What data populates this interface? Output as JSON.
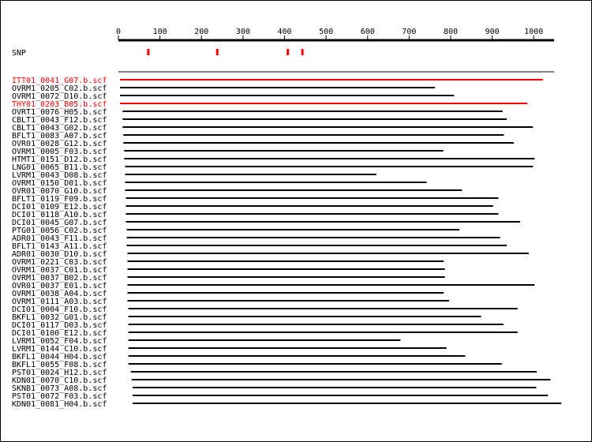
{
  "chart_data": {
    "type": "bar",
    "title": "",
    "xlabel": "",
    "ylabel": "",
    "axis": {
      "min": 0,
      "max": 1050,
      "ticks": [
        0,
        100,
        200,
        300,
        400,
        500,
        600,
        700,
        800,
        900,
        1000
      ]
    },
    "snp": {
      "label": "SNP",
      "positions": [
        72,
        238,
        408,
        443
      ],
      "color": "#ff0000"
    },
    "colors": {
      "normal": "#000000",
      "highlight": "#ff0000"
    },
    "reads": [
      {
        "name": "ITT01_0041_G07.b.scf",
        "start": 4,
        "end": 1022,
        "highlight": true
      },
      {
        "name": "OVRM1_0205_C02.b.scf",
        "start": 4,
        "end": 762,
        "highlight": false
      },
      {
        "name": "OVRM1_0072_D10.b.scf",
        "start": 4,
        "end": 808,
        "highlight": false
      },
      {
        "name": "THY01_0203_B05.b.scf",
        "start": 4,
        "end": 985,
        "highlight": true
      },
      {
        "name": "OVRT1_0076_H05.b.scf",
        "start": 10,
        "end": 925,
        "highlight": false
      },
      {
        "name": "CBLT1_0043_F12.b.scf",
        "start": 10,
        "end": 935,
        "highlight": false
      },
      {
        "name": "CBLT1_0043_G02.b.scf",
        "start": 10,
        "end": 998,
        "highlight": false
      },
      {
        "name": "BFLT1_0083_A07.b.scf",
        "start": 12,
        "end": 928,
        "highlight": false
      },
      {
        "name": "OVR01_0028_G12.b.scf",
        "start": 12,
        "end": 952,
        "highlight": false
      },
      {
        "name": "OVRM1_0005_F03.b.scf",
        "start": 14,
        "end": 782,
        "highlight": false
      },
      {
        "name": "HTMT1_0151_D12.b.scf",
        "start": 14,
        "end": 1002,
        "highlight": false
      },
      {
        "name": "LNG01_0065_B11.b.scf",
        "start": 16,
        "end": 998,
        "highlight": false
      },
      {
        "name": "LVRM1_0043_D08.b.scf",
        "start": 16,
        "end": 621,
        "highlight": false
      },
      {
        "name": "OVRM1_0150_D01.b.scf",
        "start": 16,
        "end": 742,
        "highlight": false
      },
      {
        "name": "OVR01_0070_G10.b.scf",
        "start": 16,
        "end": 827,
        "highlight": false
      },
      {
        "name": "BFLT1_0119_F09.b.scf",
        "start": 18,
        "end": 915,
        "highlight": false
      },
      {
        "name": "DCI01_0109_E12.b.scf",
        "start": 18,
        "end": 902,
        "highlight": false
      },
      {
        "name": "DCI01_0118_A10.b.scf",
        "start": 18,
        "end": 915,
        "highlight": false
      },
      {
        "name": "DCI01_0045_G07.b.scf",
        "start": 18,
        "end": 967,
        "highlight": false
      },
      {
        "name": "PTG01_0056_C02.b.scf",
        "start": 20,
        "end": 821,
        "highlight": false
      },
      {
        "name": "ADR01_0043_F11.b.scf",
        "start": 20,
        "end": 919,
        "highlight": false
      },
      {
        "name": "BFLT1_0143_A11.b.scf",
        "start": 20,
        "end": 935,
        "highlight": false
      },
      {
        "name": "ADR01_0030_D10.b.scf",
        "start": 22,
        "end": 988,
        "highlight": false
      },
      {
        "name": "OVRM1_0221_C03.b.scf",
        "start": 22,
        "end": 783,
        "highlight": false
      },
      {
        "name": "OVRM1_0037_C01.b.scf",
        "start": 22,
        "end": 786,
        "highlight": false
      },
      {
        "name": "OVRM1_0037_B02.b.scf",
        "start": 22,
        "end": 786,
        "highlight": false
      },
      {
        "name": "OVR01_0037_E01.b.scf",
        "start": 22,
        "end": 1002,
        "highlight": false
      },
      {
        "name": "OVRM1_0038_A04.b.scf",
        "start": 22,
        "end": 783,
        "highlight": false
      },
      {
        "name": "OVRM1_0111_A03.b.scf",
        "start": 22,
        "end": 796,
        "highlight": false
      },
      {
        "name": "DCI01_0004_F10.b.scf",
        "start": 24,
        "end": 961,
        "highlight": false
      },
      {
        "name": "BKFL1_0032_G01.b.scf",
        "start": 24,
        "end": 873,
        "highlight": false
      },
      {
        "name": "DCI01_0117_D03.b.scf",
        "start": 24,
        "end": 927,
        "highlight": false
      },
      {
        "name": "DCI01_0100_E12.b.scf",
        "start": 24,
        "end": 961,
        "highlight": false
      },
      {
        "name": "LVRM1_0052_F04.b.scf",
        "start": 24,
        "end": 679,
        "highlight": false
      },
      {
        "name": "LVRM1_0144_C10.b.scf",
        "start": 24,
        "end": 790,
        "highlight": false
      },
      {
        "name": "BKFL1_0044_H04.b.scf",
        "start": 24,
        "end": 835,
        "highlight": false
      },
      {
        "name": "BKFL1_0055_F08.b.scf",
        "start": 24,
        "end": 923,
        "highlight": false
      },
      {
        "name": "PST01_0024_H12.b.scf",
        "start": 30,
        "end": 1007,
        "highlight": false
      },
      {
        "name": "KDN01_0070_C10.b.scf",
        "start": 32,
        "end": 1040,
        "highlight": false
      },
      {
        "name": "SKNB1_0073_A08.b.scf",
        "start": 34,
        "end": 1006,
        "highlight": false
      },
      {
        "name": "PST01_0072_F03.b.scf",
        "start": 34,
        "end": 1034,
        "highlight": false
      },
      {
        "name": "KDN01_0081_H04.b.scf",
        "start": 34,
        "end": 1066,
        "highlight": false
      }
    ]
  }
}
